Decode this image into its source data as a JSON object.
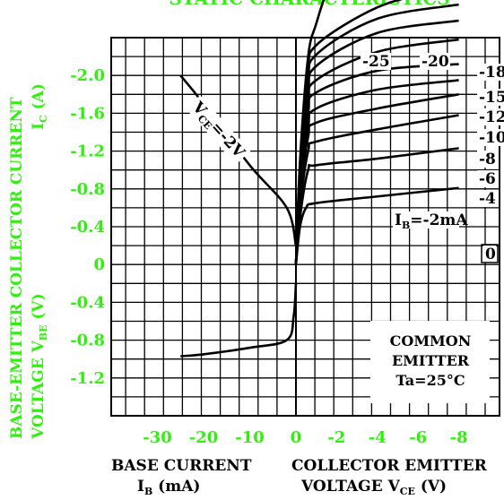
{
  "title": "STATIC CHARACTERISTICS",
  "colors": {
    "ink": "#000000",
    "accent": "#33ee11",
    "background": "#ffffff"
  },
  "left_axis_label": {
    "line1": "BASE-EMITTER   COLLECTOR  CURRENT",
    "line2": "VOLTAGE  V",
    "line2_sub": "BE",
    "line2_unit": "  (V)",
    "ic_label": "I",
    "ic_sub": "C",
    "ic_unit": " (A)"
  },
  "bottom_left_label": {
    "line1": "BASE  CURRENT",
    "symbol": "I",
    "sub": "B",
    "unit": "  (mA)"
  },
  "bottom_right_label": {
    "line1": "COLLECTOR  EMITTER",
    "line2": "VOLTAGE  V",
    "sub": "CE",
    "unit": "   (V)"
  },
  "annotation": {
    "lines": [
      "COMMON",
      "EMITTER",
      "Ta=25°C"
    ]
  },
  "vce_label": {
    "prefix": "V",
    "sub": "CE",
    "text": "=-2V"
  },
  "chart_data": {
    "type": "line",
    "y_axis": {
      "label": "Collector current IC (A) / Base-emitter voltage VBE (V)",
      "ylim": [
        -1.6,
        2.4
      ],
      "tick_values": [
        2.0,
        1.6,
        1.2,
        0.8,
        0.4,
        0,
        -0.4,
        -0.8,
        -1.2
      ],
      "tick_labels": [
        "-2.0",
        "-1.6",
        "-1.2",
        "-0.8",
        "-0.4",
        "0",
        "-0.4",
        "-0.8",
        "-1.2"
      ]
    },
    "x_left_axis": {
      "label": "Base current IB (mA)",
      "xlim": [
        0,
        40
      ],
      "tick_values": [
        30,
        20,
        10,
        0
      ],
      "tick_labels": [
        "-30",
        "-20",
        "-10",
        "0"
      ]
    },
    "x_right_axis": {
      "label": "Collector emitter voltage VCE (V)",
      "xlim": [
        0,
        10
      ],
      "tick_values": [
        2,
        4,
        6,
        8
      ],
      "tick_labels": [
        "-2",
        "-4",
        "-6",
        "-8"
      ]
    },
    "grid": true,
    "series_right": [
      {
        "name": "0",
        "label": "0",
        "points": [
          [
            0,
            0
          ],
          [
            0.2,
            0.4
          ],
          [
            0.5,
            0.6
          ],
          [
            1,
            0.65
          ],
          [
            4,
            0.72
          ],
          [
            8,
            0.81
          ]
        ]
      },
      {
        "name": "-2",
        "label": "IB=-2mA",
        "points": [
          [
            0,
            0
          ],
          [
            0.2,
            0.5
          ],
          [
            0.6,
            1.0
          ],
          [
            1,
            1.05
          ],
          [
            4,
            1.12
          ],
          [
            8,
            1.23
          ]
        ]
      },
      {
        "name": "-4",
        "label": "-4",
        "points": [
          [
            0,
            0
          ],
          [
            0.2,
            0.6
          ],
          [
            0.6,
            1.2
          ],
          [
            1,
            1.3
          ],
          [
            4,
            1.43
          ],
          [
            8,
            1.58
          ]
        ]
      },
      {
        "name": "-6",
        "label": "-6",
        "points": [
          [
            0,
            0
          ],
          [
            0.2,
            0.7
          ],
          [
            0.6,
            1.35
          ],
          [
            1,
            1.5
          ],
          [
            4,
            1.65
          ],
          [
            8,
            1.8
          ]
        ]
      },
      {
        "name": "-8",
        "label": "-8",
        "points": [
          [
            0,
            0
          ],
          [
            0.2,
            0.75
          ],
          [
            0.6,
            1.45
          ],
          [
            1,
            1.65
          ],
          [
            4,
            1.85
          ],
          [
            8,
            1.95
          ]
        ]
      },
      {
        "name": "-10",
        "label": "-10",
        "points": [
          [
            0,
            0
          ],
          [
            0.2,
            0.8
          ],
          [
            0.6,
            1.6
          ],
          [
            1,
            1.82
          ],
          [
            4,
            2.05
          ],
          [
            8,
            2.12
          ]
        ]
      },
      {
        "name": "-12",
        "label": "-12",
        "points": [
          [
            0,
            0
          ],
          [
            0.2,
            0.85
          ],
          [
            0.6,
            1.7
          ],
          [
            1,
            1.95
          ],
          [
            4,
            2.25
          ],
          [
            8,
            2.38
          ]
        ]
      },
      {
        "name": "-15",
        "label": "-15",
        "points": [
          [
            0,
            0
          ],
          [
            0.2,
            0.9
          ],
          [
            0.6,
            1.8
          ],
          [
            1,
            2.1
          ],
          [
            4,
            2.45
          ],
          [
            8,
            2.58
          ]
        ]
      },
      {
        "name": "-18",
        "label": "-18",
        "points": [
          [
            0,
            0
          ],
          [
            0.2,
            0.95
          ],
          [
            0.6,
            1.9
          ],
          [
            1,
            2.22
          ],
          [
            4,
            2.6
          ],
          [
            8,
            2.75
          ]
        ]
      },
      {
        "name": "-20",
        "label": "-20",
        "points": [
          [
            0,
            0
          ],
          [
            0.2,
            1.0
          ],
          [
            0.6,
            2.0
          ],
          [
            1,
            2.32
          ],
          [
            4,
            2.72
          ],
          [
            7,
            2.9
          ]
        ]
      },
      {
        "name": "-25",
        "label": "-25",
        "points": [
          [
            0,
            0
          ],
          [
            0.2,
            1.1
          ],
          [
            0.6,
            2.2
          ],
          [
            1,
            2.55
          ],
          [
            1.6,
            2.95
          ],
          [
            2.4,
            3.4
          ]
        ]
      }
    ],
    "series_left": [
      {
        "name": "VCE=-2V (IC)",
        "points": [
          [
            0,
            0.2
          ],
          [
            2,
            0.6
          ],
          [
            10,
            1.05
          ],
          [
            20,
            1.7
          ],
          [
            25,
            2.0
          ]
        ]
      },
      {
        "name": "VCE=-2V (VBE)",
        "points": [
          [
            0,
            -0.2
          ],
          [
            0.5,
            -0.55
          ],
          [
            2,
            -0.8
          ],
          [
            10,
            -0.88
          ],
          [
            20,
            -0.95
          ],
          [
            25,
            -0.97
          ]
        ]
      }
    ],
    "annotations": [
      "COMMON EMITTER Ta=25°C",
      "VCE=-2V",
      "IB=-2mA"
    ]
  }
}
